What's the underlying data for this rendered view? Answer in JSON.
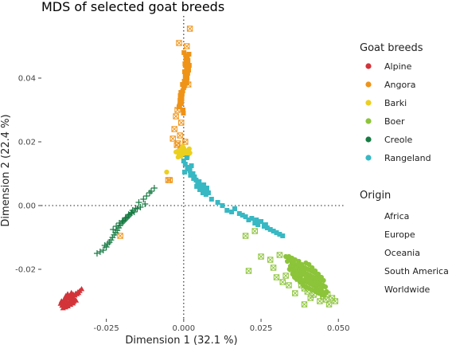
{
  "chart_data": {
    "type": "scatter",
    "title": "MDS of selected goat breeds",
    "xlabel": "Dimension 1 (32.1 %)",
    "ylabel": "Dimension 2 (22.4 %)",
    "xlim": [
      -0.046,
      0.052
    ],
    "ylim": [
      -0.0355,
      0.0595
    ],
    "xticks": [
      -0.025,
      0.0,
      0.025,
      0.05
    ],
    "xtick_labels": [
      "-0.025",
      "0.000",
      "0.025",
      "0.050"
    ],
    "yticks": [
      -0.02,
      0.0,
      0.02,
      0.04
    ],
    "ytick_labels": [
      "-0.02",
      "0.00",
      "0.02",
      "0.04"
    ],
    "grid": false,
    "reference_lines": {
      "x": 0,
      "y": 0,
      "style": "dotted"
    },
    "legend_position": "right",
    "legends": {
      "color": {
        "title": "Goat breeds",
        "entries": [
          {
            "label": "Alpine",
            "color": "#d2343a"
          },
          {
            "label": "Angora",
            "color": "#ef9318"
          },
          {
            "label": "Barki",
            "color": "#ecd01f"
          },
          {
            "label": "Boer",
            "color": "#8cc43a"
          },
          {
            "label": "Creole",
            "color": "#177b43"
          },
          {
            "label": "Rangeland",
            "color": "#38b8c3"
          }
        ]
      },
      "shape": {
        "title": "Origin",
        "entries": [
          {
            "label": "Africa",
            "marker": "circle"
          },
          {
            "label": "Europe",
            "marker": "triangle"
          },
          {
            "label": "Oceania",
            "marker": "square"
          },
          {
            "label": "South America",
            "marker": "plus"
          },
          {
            "label": "Worldwide",
            "marker": "box-x"
          }
        ]
      }
    },
    "series": [
      {
        "name": "Alpine",
        "origin": "Europe",
        "color": "#d2343a",
        "marker": "triangle",
        "x": [
          -0.0395,
          -0.0388,
          -0.038,
          -0.0372,
          -0.0365,
          -0.0358,
          -0.0352,
          -0.0345,
          -0.034,
          -0.0392,
          -0.0384,
          -0.0376,
          -0.0368,
          -0.036,
          -0.0354,
          -0.0385,
          -0.0378,
          -0.037,
          -0.0362,
          -0.0355,
          -0.0348,
          -0.039,
          -0.0382,
          -0.0374,
          -0.0366,
          -0.0358,
          -0.0386,
          -0.0379,
          -0.0371,
          -0.0364,
          -0.0357,
          -0.0349,
          -0.0342,
          -0.0336,
          -0.033,
          -0.0398,
          -0.0393,
          -0.0387,
          -0.0381,
          -0.0375,
          -0.0369,
          -0.0363
        ],
        "y": [
          -0.03,
          -0.0305,
          -0.0298,
          -0.0292,
          -0.029,
          -0.0286,
          -0.0282,
          -0.0278,
          -0.0274,
          -0.0312,
          -0.031,
          -0.0304,
          -0.03,
          -0.0296,
          -0.0293,
          -0.0318,
          -0.0314,
          -0.031,
          -0.0306,
          -0.0302,
          -0.0298,
          -0.0322,
          -0.0319,
          -0.0316,
          -0.0311,
          -0.0307,
          -0.0294,
          -0.029,
          -0.0286,
          -0.0282,
          -0.0279,
          -0.0276,
          -0.0272,
          -0.0268,
          -0.0262,
          -0.0308,
          -0.0314,
          -0.0296,
          -0.0284,
          -0.0278,
          -0.0284,
          -0.0274
        ]
      },
      {
        "name": "Angora",
        "origin": "Oceania",
        "color": "#ef9318",
        "marker": "square",
        "x": [
          0.0005,
          0.001,
          0.0015,
          0.0008,
          0.0003,
          0.0012,
          0.0018,
          0.0006,
          0.0001,
          0.0014,
          0.0009,
          0.0004,
          0.0011,
          0.0016,
          0.0007,
          0.0002,
          0.0013,
          0.0017,
          0.0005,
          0.001,
          -0.001,
          -0.0005,
          -0.0012,
          -0.0003,
          -0.0008,
          0.0,
          -0.0015,
          -0.0002,
          -0.0009,
          -0.0006,
          -0.0011,
          -0.0004,
          0.0002,
          -0.0007,
          -0.0013,
          -0.0001
        ],
        "y": [
          0.044,
          0.045,
          0.043,
          0.046,
          0.042,
          0.047,
          0.044,
          0.041,
          0.048,
          0.0455,
          0.0435,
          0.0445,
          0.04,
          0.0425,
          0.0465,
          0.039,
          0.0415,
          0.0475,
          0.0405,
          0.0385,
          0.034,
          0.035,
          0.033,
          0.036,
          0.032,
          0.037,
          0.031,
          0.03,
          0.0355,
          0.0335,
          0.0345,
          0.038,
          0.0375,
          0.0325,
          0.0315,
          0.029
        ]
      },
      {
        "name": "Angora",
        "origin": "Worldwide",
        "color": "#ef9318",
        "marker": "box-x",
        "x": [
          0.002,
          -0.0015,
          0.001,
          -0.002,
          0.0015,
          -0.0008,
          -0.0025,
          -0.003,
          -0.0012,
          0.0005,
          -0.0018,
          -0.0035,
          -0.001,
          -0.0022,
          -0.005,
          -0.0205,
          -0.0045
        ],
        "y": [
          0.0555,
          0.051,
          0.05,
          0.03,
          0.038,
          0.026,
          0.028,
          0.024,
          0.022,
          0.02,
          0.0195,
          0.021,
          0.0175,
          0.019,
          0.008,
          -0.0095,
          0.008
        ]
      },
      {
        "name": "Barki",
        "origin": "Africa",
        "color": "#ecd01f",
        "marker": "circle",
        "x": [
          -0.002,
          -0.001,
          0.0,
          0.001,
          0.002,
          -0.0015,
          -0.0005,
          0.0005,
          0.0015,
          -0.0008,
          0.0008,
          -0.0018,
          0.0012,
          -0.0003,
          0.0003,
          -0.0025,
          0.0018,
          -0.0055
        ],
        "y": [
          0.017,
          0.0175,
          0.018,
          0.0172,
          0.0165,
          0.016,
          0.0165,
          0.017,
          0.016,
          0.0155,
          0.0158,
          0.0152,
          0.015,
          0.0185,
          0.0162,
          0.0168,
          0.0178,
          0.0105
        ]
      },
      {
        "name": "Boer",
        "origin": "Africa",
        "color": "#8cc43a",
        "marker": "circle",
        "x": [
          0.033,
          0.034,
          0.035,
          0.036,
          0.037,
          0.038,
          0.039,
          0.04,
          0.041,
          0.042,
          0.043,
          0.044,
          0.045,
          0.0355,
          0.0365,
          0.0375,
          0.0385,
          0.0395,
          0.0405,
          0.0415,
          0.0425,
          0.0435,
          0.0445,
          0.0345,
          0.0335,
          0.0372,
          0.0382,
          0.0392,
          0.0402,
          0.0412,
          0.0422,
          0.0432,
          0.0442,
          0.0452,
          0.0362,
          0.0368,
          0.0378,
          0.0388,
          0.0398,
          0.0408,
          0.0418,
          0.0428,
          0.0438,
          0.0448,
          0.0342,
          0.0352,
          0.0358,
          0.0364,
          0.0376,
          0.0386,
          0.0396,
          0.0406,
          0.0416,
          0.0426,
          0.0436,
          0.0446,
          0.0458,
          0.0462,
          0.0455,
          0.044,
          0.043,
          0.042,
          0.041,
          0.04,
          0.039,
          0.038,
          0.037,
          0.036,
          0.035,
          0.034,
          0.0395,
          0.0405,
          0.0415,
          0.0425,
          0.0435,
          0.0445,
          0.0385,
          0.0375,
          0.0365,
          0.0355
        ],
        "y": [
          -0.016,
          -0.017,
          -0.018,
          -0.0185,
          -0.019,
          -0.02,
          -0.021,
          -0.0215,
          -0.022,
          -0.0225,
          -0.023,
          -0.024,
          -0.025,
          -0.0195,
          -0.02,
          -0.021,
          -0.0215,
          -0.0225,
          -0.023,
          -0.0235,
          -0.024,
          -0.0245,
          -0.026,
          -0.019,
          -0.0175,
          -0.0175,
          -0.0185,
          -0.0195,
          -0.02,
          -0.0205,
          -0.021,
          -0.022,
          -0.023,
          -0.0235,
          -0.0205,
          -0.022,
          -0.0225,
          -0.0235,
          -0.024,
          -0.0245,
          -0.025,
          -0.0255,
          -0.0265,
          -0.027,
          -0.02,
          -0.0215,
          -0.0225,
          -0.023,
          -0.024,
          -0.025,
          -0.0255,
          -0.026,
          -0.0265,
          -0.027,
          -0.0275,
          -0.028,
          -0.0255,
          -0.027,
          -0.028,
          -0.025,
          -0.0262,
          -0.0248,
          -0.0238,
          -0.0228,
          -0.0203,
          -0.0193,
          -0.0183,
          -0.017,
          -0.0165,
          -0.016,
          -0.018,
          -0.0185,
          -0.0195,
          -0.0205,
          -0.0215,
          -0.0225,
          -0.0245,
          -0.0235,
          -0.0215,
          -0.0205
        ]
      },
      {
        "name": "Boer",
        "origin": "Worldwide",
        "color": "#8cc43a",
        "marker": "box-x",
        "x": [
          0.02,
          0.023,
          0.021,
          0.025,
          0.028,
          0.031,
          0.029,
          0.033,
          0.03,
          0.032,
          0.035,
          0.037,
          0.039,
          0.042,
          0.04,
          0.044,
          0.046,
          0.048,
          0.045,
          0.047,
          0.049,
          0.041,
          0.043,
          0.038,
          0.036,
          0.034,
          0.039,
          0.0465
        ],
        "y": [
          -0.0095,
          -0.008,
          -0.0205,
          -0.016,
          -0.017,
          -0.0155,
          -0.0195,
          -0.022,
          -0.0225,
          -0.024,
          -0.02,
          -0.023,
          -0.026,
          -0.028,
          -0.027,
          -0.03,
          -0.0295,
          -0.029,
          -0.0285,
          -0.031,
          -0.03,
          -0.029,
          -0.026,
          -0.025,
          -0.0275,
          -0.025,
          -0.031,
          -0.0278
        ]
      },
      {
        "name": "Creole",
        "origin": "South America",
        "color": "#177b43",
        "marker": "plus",
        "x": [
          -0.025,
          -0.024,
          -0.023,
          -0.022,
          -0.021,
          -0.02,
          -0.019,
          -0.018,
          -0.017,
          -0.016,
          -0.015,
          -0.014,
          -0.0245,
          -0.0235,
          -0.0225,
          -0.0215,
          -0.0205,
          -0.0195,
          -0.0185,
          -0.0175,
          -0.0165,
          -0.0155,
          -0.026,
          -0.0255,
          -0.0228,
          -0.0218,
          -0.0208,
          -0.0198,
          -0.0188,
          -0.0178,
          -0.0168,
          -0.0145,
          -0.013,
          -0.012,
          -0.0105,
          -0.0095,
          -0.028,
          -0.027,
          -0.0125,
          -0.011
        ],
        "y": [
          -0.013,
          -0.0115,
          -0.01,
          -0.0085,
          -0.007,
          -0.0055,
          -0.0045,
          -0.0035,
          -0.0025,
          -0.002,
          -0.001,
          -0.0005,
          -0.012,
          -0.0108,
          -0.0092,
          -0.0078,
          -0.0062,
          -0.005,
          -0.004,
          -0.003,
          -0.0015,
          -0.0008,
          -0.014,
          -0.0125,
          -0.0075,
          -0.0065,
          -0.0055,
          -0.0048,
          -0.0038,
          -0.0028,
          -0.0022,
          0.001,
          0.002,
          0.003,
          0.0045,
          0.0055,
          -0.015,
          -0.0145,
          0.0005,
          0.004
        ]
      },
      {
        "name": "Rangeland",
        "origin": "Oceania",
        "color": "#38b8c3",
        "marker": "square",
        "x": [
          0.0,
          0.0005,
          0.001,
          0.0015,
          0.002,
          0.0025,
          0.003,
          0.0035,
          0.004,
          0.0045,
          0.005,
          0.0055,
          0.006,
          0.0065,
          0.007,
          0.0075,
          0.008,
          0.0003,
          0.0012,
          0.0022,
          0.0032,
          0.0042,
          0.0052,
          0.0062,
          0.0072,
          0.009,
          0.011,
          0.0125,
          0.014,
          0.0155,
          0.0165,
          0.018,
          0.019,
          0.02,
          0.021,
          0.022,
          0.023,
          0.024,
          0.025,
          0.026,
          0.027,
          0.028,
          0.029,
          0.03,
          0.031,
          0.032,
          0.0235,
          0.0265
        ],
        "y": [
          0.014,
          0.013,
          0.015,
          0.012,
          0.011,
          0.0125,
          0.01,
          0.009,
          0.008,
          0.007,
          0.0075,
          0.006,
          0.005,
          0.0065,
          0.0045,
          0.0055,
          0.004,
          0.0105,
          0.0115,
          0.0095,
          0.0085,
          0.006,
          0.005,
          0.004,
          0.0035,
          0.002,
          0.001,
          0.0,
          -0.0015,
          -0.002,
          -0.001,
          -0.0025,
          -0.003,
          -0.0035,
          -0.0045,
          -0.004,
          -0.0055,
          -0.006,
          -0.005,
          -0.0065,
          -0.007,
          -0.0075,
          -0.008,
          -0.0085,
          -0.009,
          -0.0095,
          -0.0045,
          -0.006
        ]
      }
    ]
  }
}
